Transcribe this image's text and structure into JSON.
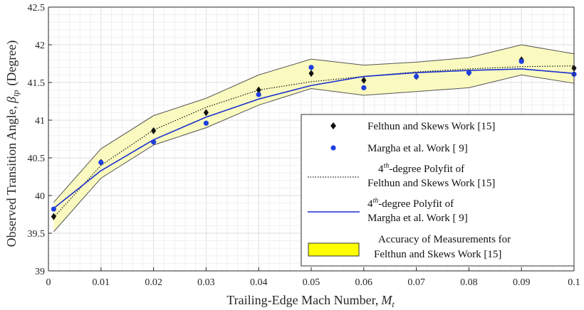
{
  "chart_data": {
    "type": "scatter",
    "title": "",
    "xlabel": "Trailing-Edge Mach Number,",
    "xlabel_symbol": "M",
    "xlabel_sub": "t",
    "ylabel": "Observed Transition Angle,",
    "ylabel_symbol": "β",
    "ylabel_sub": "tp",
    "ylabel_unit": "(Degree)",
    "xlim": [
      0,
      0.1
    ],
    "ylim": [
      39,
      42.5
    ],
    "grid": true,
    "x_ticks": [
      "0",
      "0.01",
      "0.02",
      "0.03",
      "0.04",
      "0.05",
      "0.06",
      "0.07",
      "0.08",
      "0.09",
      "0.1"
    ],
    "y_ticks": [
      "39",
      "39.5",
      "40",
      "40.5",
      "41",
      "41.5",
      "42",
      "42.5"
    ],
    "colors": {
      "band_fill": "#fafac0",
      "band_edge": "#555555",
      "felthun_marker": "#111111",
      "margha_marker": "#1f3fe0",
      "fit_felthun": "#111111",
      "fit_margha": "#1a2fd0",
      "legend_swatch": "#ffff00"
    },
    "series": [
      {
        "name": "Felthun and Skews Work [15]",
        "kind": "points",
        "marker": "diamond",
        "x": [
          0.001,
          0.01,
          0.02,
          0.03,
          0.04,
          0.05,
          0.06,
          0.07,
          0.08,
          0.09,
          0.1
        ],
        "y": [
          39.72,
          40.44,
          40.86,
          41.1,
          41.4,
          41.62,
          41.53,
          41.58,
          41.63,
          41.8,
          41.69
        ]
      },
      {
        "name": "Margha et al. Work [ 9]",
        "kind": "points",
        "marker": "circle",
        "x": [
          0.001,
          0.01,
          0.02,
          0.03,
          0.04,
          0.05,
          0.06,
          0.07,
          0.08,
          0.09,
          0.1
        ],
        "y": [
          39.82,
          40.44,
          40.71,
          40.96,
          41.34,
          41.7,
          41.43,
          41.58,
          41.63,
          41.78,
          41.61
        ]
      },
      {
        "name": "4th-degree Polyfit of Felthun and Skews Work [15]",
        "kind": "line",
        "style": "dotted",
        "x": [
          0.001,
          0.01,
          0.02,
          0.03,
          0.04,
          0.05,
          0.06,
          0.07,
          0.08,
          0.09,
          0.1
        ],
        "y": [
          39.71,
          40.4,
          40.87,
          41.17,
          41.4,
          41.51,
          41.58,
          41.64,
          41.68,
          41.71,
          41.72
        ]
      },
      {
        "name": "4th-degree Polyfit of Margha et al. Work [ 9]",
        "kind": "line",
        "style": "solid",
        "x": [
          0.001,
          0.01,
          0.02,
          0.03,
          0.04,
          0.05,
          0.06,
          0.07,
          0.08,
          0.09,
          0.1
        ],
        "y": [
          39.83,
          40.33,
          40.74,
          41.04,
          41.28,
          41.46,
          41.58,
          41.63,
          41.66,
          41.68,
          41.62
        ]
      },
      {
        "name": "Accuracy of Measurements for Felthun and Skews Work [15]",
        "kind": "band",
        "x": [
          0.001,
          0.01,
          0.02,
          0.03,
          0.04,
          0.05,
          0.06,
          0.07,
          0.08,
          0.09,
          0.1
        ],
        "upper": [
          39.91,
          40.62,
          41.06,
          41.29,
          41.6,
          41.81,
          41.73,
          41.77,
          41.83,
          42.0,
          41.88
        ],
        "lower": [
          39.52,
          40.23,
          40.67,
          40.9,
          41.2,
          41.42,
          41.33,
          41.38,
          41.43,
          41.6,
          41.49
        ]
      }
    ],
    "legend": {
      "placement": "lower-right",
      "entries": [
        {
          "line1": "Felthun and Skews Work [15]"
        },
        {
          "line1": "Margha et al. Work [ 9]"
        },
        {
          "line1_base": "4",
          "line1_sup": "th",
          "line1_rest": "-degree Polyfit of",
          "line2": "Felthun and Skews Work [15]"
        },
        {
          "line1_base": "4",
          "line1_sup": "th",
          "line1_rest": "-degree Polyfit of",
          "line2": "Margha et al. Work [ 9]"
        },
        {
          "line1": "Accuracy of Measurements for",
          "line2": "Felthun and Skews Work [15]"
        }
      ]
    }
  }
}
